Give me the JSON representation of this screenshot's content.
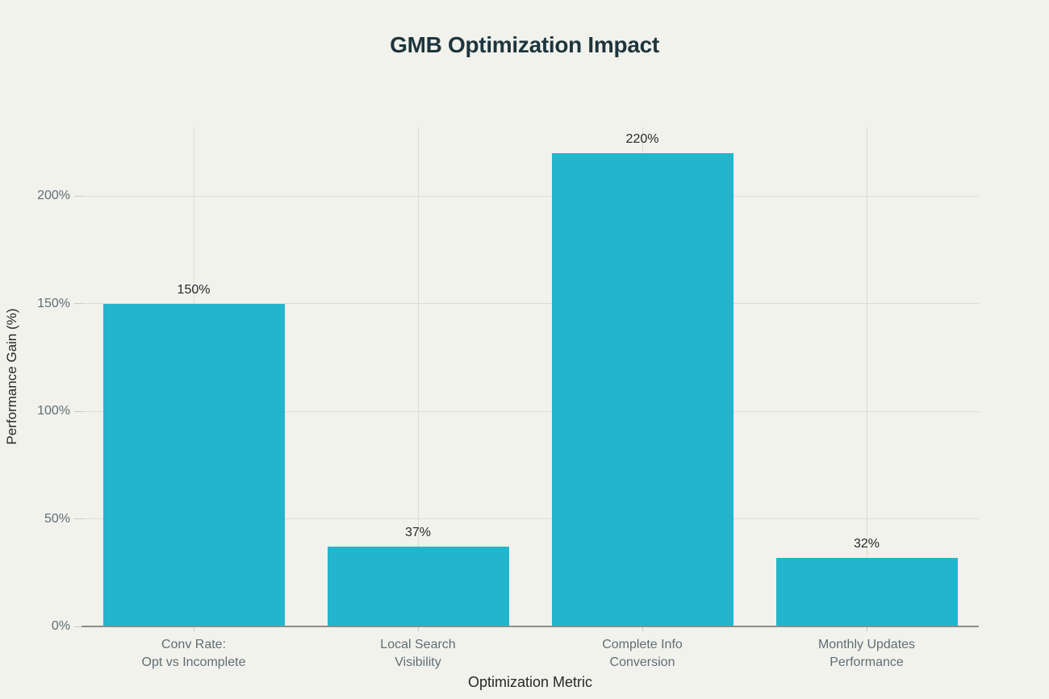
{
  "chart_data": {
    "type": "bar",
    "title": "GMB Optimization Impact",
    "xlabel": "Optimization Metric",
    "ylabel": "Performance Gain (%)",
    "categories": [
      "Conv Rate:\nOpt vs Incomplete",
      "Local Search\nVisibility",
      "Complete Info\nConversion",
      "Monthly Updates\nPerformance"
    ],
    "values": [
      150,
      37,
      220,
      32
    ],
    "bar_labels": [
      "150%",
      "37%",
      "220%",
      "32%"
    ],
    "yticks": [
      0,
      50,
      100,
      150,
      200
    ],
    "ytick_labels": [
      "0%",
      "50%",
      "100%",
      "150%",
      "200%"
    ],
    "ylim": [
      0,
      232
    ],
    "grid": true,
    "legend": "none",
    "colors": {
      "background": "#f2f2ed",
      "bar": "#22b5cc",
      "grid": "#dcdbd3",
      "axis_line": "#8e8e87",
      "tick_mark": "#c9c8c1",
      "title": "#1d353c",
      "tick_label": "#5f6e73",
      "axis_label": "#24282a",
      "data_label": "#26292b"
    }
  }
}
